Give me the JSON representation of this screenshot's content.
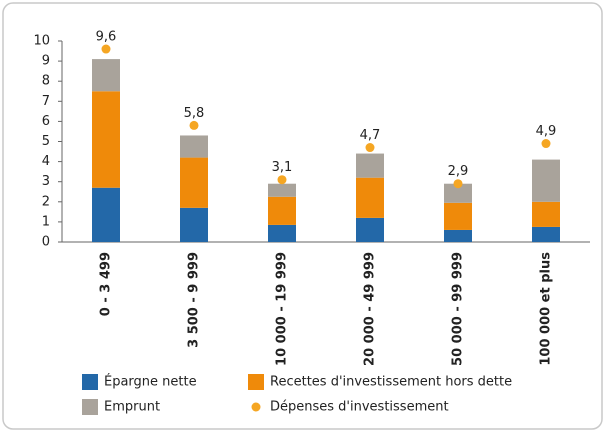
{
  "chart_data": {
    "type": "bar",
    "categories": [
      "0 - 3 499",
      "3 500 - 9 999",
      "10 000 - 19 999",
      "20 000 - 49 999",
      "50 000 - 99 999",
      "100 000 et plus"
    ],
    "stacked": true,
    "series": [
      {
        "name": "Épargne nette",
        "color": "#2368a8",
        "values": [
          2.7,
          1.7,
          0.85,
          1.2,
          0.6,
          0.75
        ]
      },
      {
        "name": "Recettes d'investissement hors dette",
        "color": "#ef8a0a",
        "values": [
          4.8,
          2.5,
          1.4,
          2.0,
          1.35,
          1.25
        ]
      },
      {
        "name": "Emprunt",
        "color": "#a9a39b",
        "values": [
          1.6,
          1.1,
          0.65,
          1.2,
          0.95,
          2.1
        ]
      },
      {
        "name": "Dépenses d'investissement",
        "color": "#f5a623",
        "type": "dot",
        "values": [
          9.6,
          5.8,
          3.1,
          4.7,
          2.9,
          4.9
        ],
        "value_labels": [
          "9,6",
          "5,8",
          "3,1",
          "4,7",
          "2,9",
          "4,9"
        ]
      }
    ],
    "ylim": [
      0,
      10
    ],
    "yticks": [
      0,
      1,
      2,
      3,
      4,
      5,
      6,
      7,
      8,
      9,
      10
    ]
  }
}
